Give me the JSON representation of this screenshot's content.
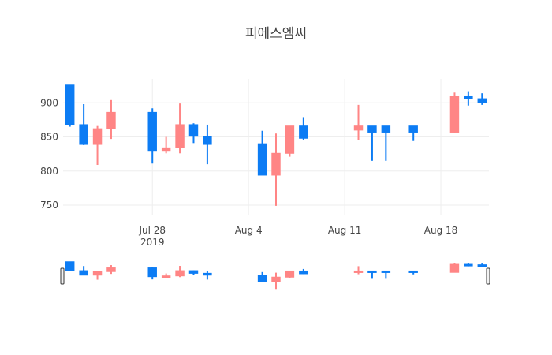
{
  "chart_data": {
    "type": "candlestick",
    "title": "피에스엠씨",
    "xlabel": "",
    "ylabel": "",
    "x_ticks": [
      {
        "date": "2019-07-28",
        "label": "Jul 28",
        "sublabel": "2019"
      },
      {
        "date": "2019-08-04",
        "label": "Aug 4",
        "sublabel": ""
      },
      {
        "date": "2019-08-11",
        "label": "Aug 11",
        "sublabel": ""
      },
      {
        "date": "2019-08-18",
        "label": "Aug 18",
        "sublabel": ""
      }
    ],
    "y_ticks": [
      750,
      800,
      850,
      900
    ],
    "x_range": [
      "2019-07-22",
      "2019-08-21"
    ],
    "ylim": [
      735,
      935
    ],
    "grid": true,
    "range_slider": true,
    "increasing_color": "#FF8585",
    "decreasing_color": "#0C7CF4",
    "candles": [
      {
        "date": "2019-07-22",
        "open": 926,
        "high": 926,
        "low": 865,
        "close": 868
      },
      {
        "date": "2019-07-23",
        "open": 868,
        "high": 898,
        "low": 838,
        "close": 839
      },
      {
        "date": "2019-07-24",
        "open": 839,
        "high": 866,
        "low": 809,
        "close": 862
      },
      {
        "date": "2019-07-25",
        "open": 862,
        "high": 904,
        "low": 847,
        "close": 886
      },
      {
        "date": "2019-07-28",
        "open": 886,
        "high": 892,
        "low": 811,
        "close": 829
      },
      {
        "date": "2019-07-29",
        "open": 829,
        "high": 850,
        "low": 826,
        "close": 834
      },
      {
        "date": "2019-07-30",
        "open": 834,
        "high": 899,
        "low": 826,
        "close": 868
      },
      {
        "date": "2019-07-31",
        "open": 868,
        "high": 870,
        "low": 841,
        "close": 851
      },
      {
        "date": "2019-08-01",
        "open": 851,
        "high": 868,
        "low": 810,
        "close": 839
      },
      {
        "date": "2019-08-05",
        "open": 840,
        "high": 859,
        "low": 794,
        "close": 794
      },
      {
        "date": "2019-08-06",
        "open": 794,
        "high": 855,
        "low": 749,
        "close": 826
      },
      {
        "date": "2019-08-07",
        "open": 826,
        "high": 866,
        "low": 821,
        "close": 866
      },
      {
        "date": "2019-08-08",
        "open": 866,
        "high": 879,
        "low": 846,
        "close": 848
      },
      {
        "date": "2019-08-12",
        "open": 860,
        "high": 897,
        "low": 845,
        "close": 866
      },
      {
        "date": "2019-08-13",
        "open": 866,
        "high": 866,
        "low": 815,
        "close": 857
      },
      {
        "date": "2019-08-14",
        "open": 866,
        "high": 866,
        "low": 815,
        "close": 857
      },
      {
        "date": "2019-08-16",
        "open": 866,
        "high": 866,
        "low": 844,
        "close": 857
      },
      {
        "date": "2019-08-19",
        "open": 857,
        "high": 915,
        "low": 856,
        "close": 909
      },
      {
        "date": "2019-08-20",
        "open": 909,
        "high": 917,
        "low": 896,
        "close": 906
      },
      {
        "date": "2019-08-21",
        "open": 906,
        "high": 914,
        "low": 897,
        "close": 900
      }
    ]
  }
}
